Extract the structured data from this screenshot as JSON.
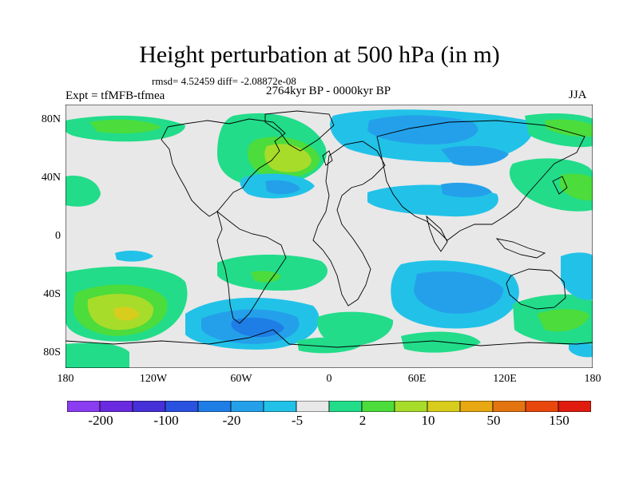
{
  "header": {
    "title": "Height perturbation at 500 hPa (in m)",
    "stats": "rmsd= 4.52459 diff= -2.08872e-08",
    "experiment": "Expt = tfMFB-tfmea",
    "period": "2764kyr BP - 0000kyr BP",
    "season": "JJA"
  },
  "axes": {
    "lat_labels": [
      "80N",
      "40N",
      "0",
      "40S",
      "80S"
    ],
    "lon_labels": [
      "180",
      "120W",
      "60W",
      "0",
      "60E",
      "120E",
      "180"
    ]
  },
  "colorbar": {
    "colors": [
      "#8a3cf0",
      "#6a2ae0",
      "#4630d8",
      "#2a52e0",
      "#1e7ee6",
      "#24a0ea",
      "#22c2e8",
      "#e8e8e8",
      "#22dc8a",
      "#4cdc3c",
      "#a8dc2a",
      "#d8cc1c",
      "#e8a812",
      "#e47410",
      "#e8480c",
      "#e01c10"
    ],
    "labels": [
      "-200",
      "-100",
      "-20",
      "-5",
      "2",
      "10",
      "50",
      "150"
    ]
  },
  "colors": {
    "background": "#e8e8e8",
    "coast": "#000000"
  }
}
